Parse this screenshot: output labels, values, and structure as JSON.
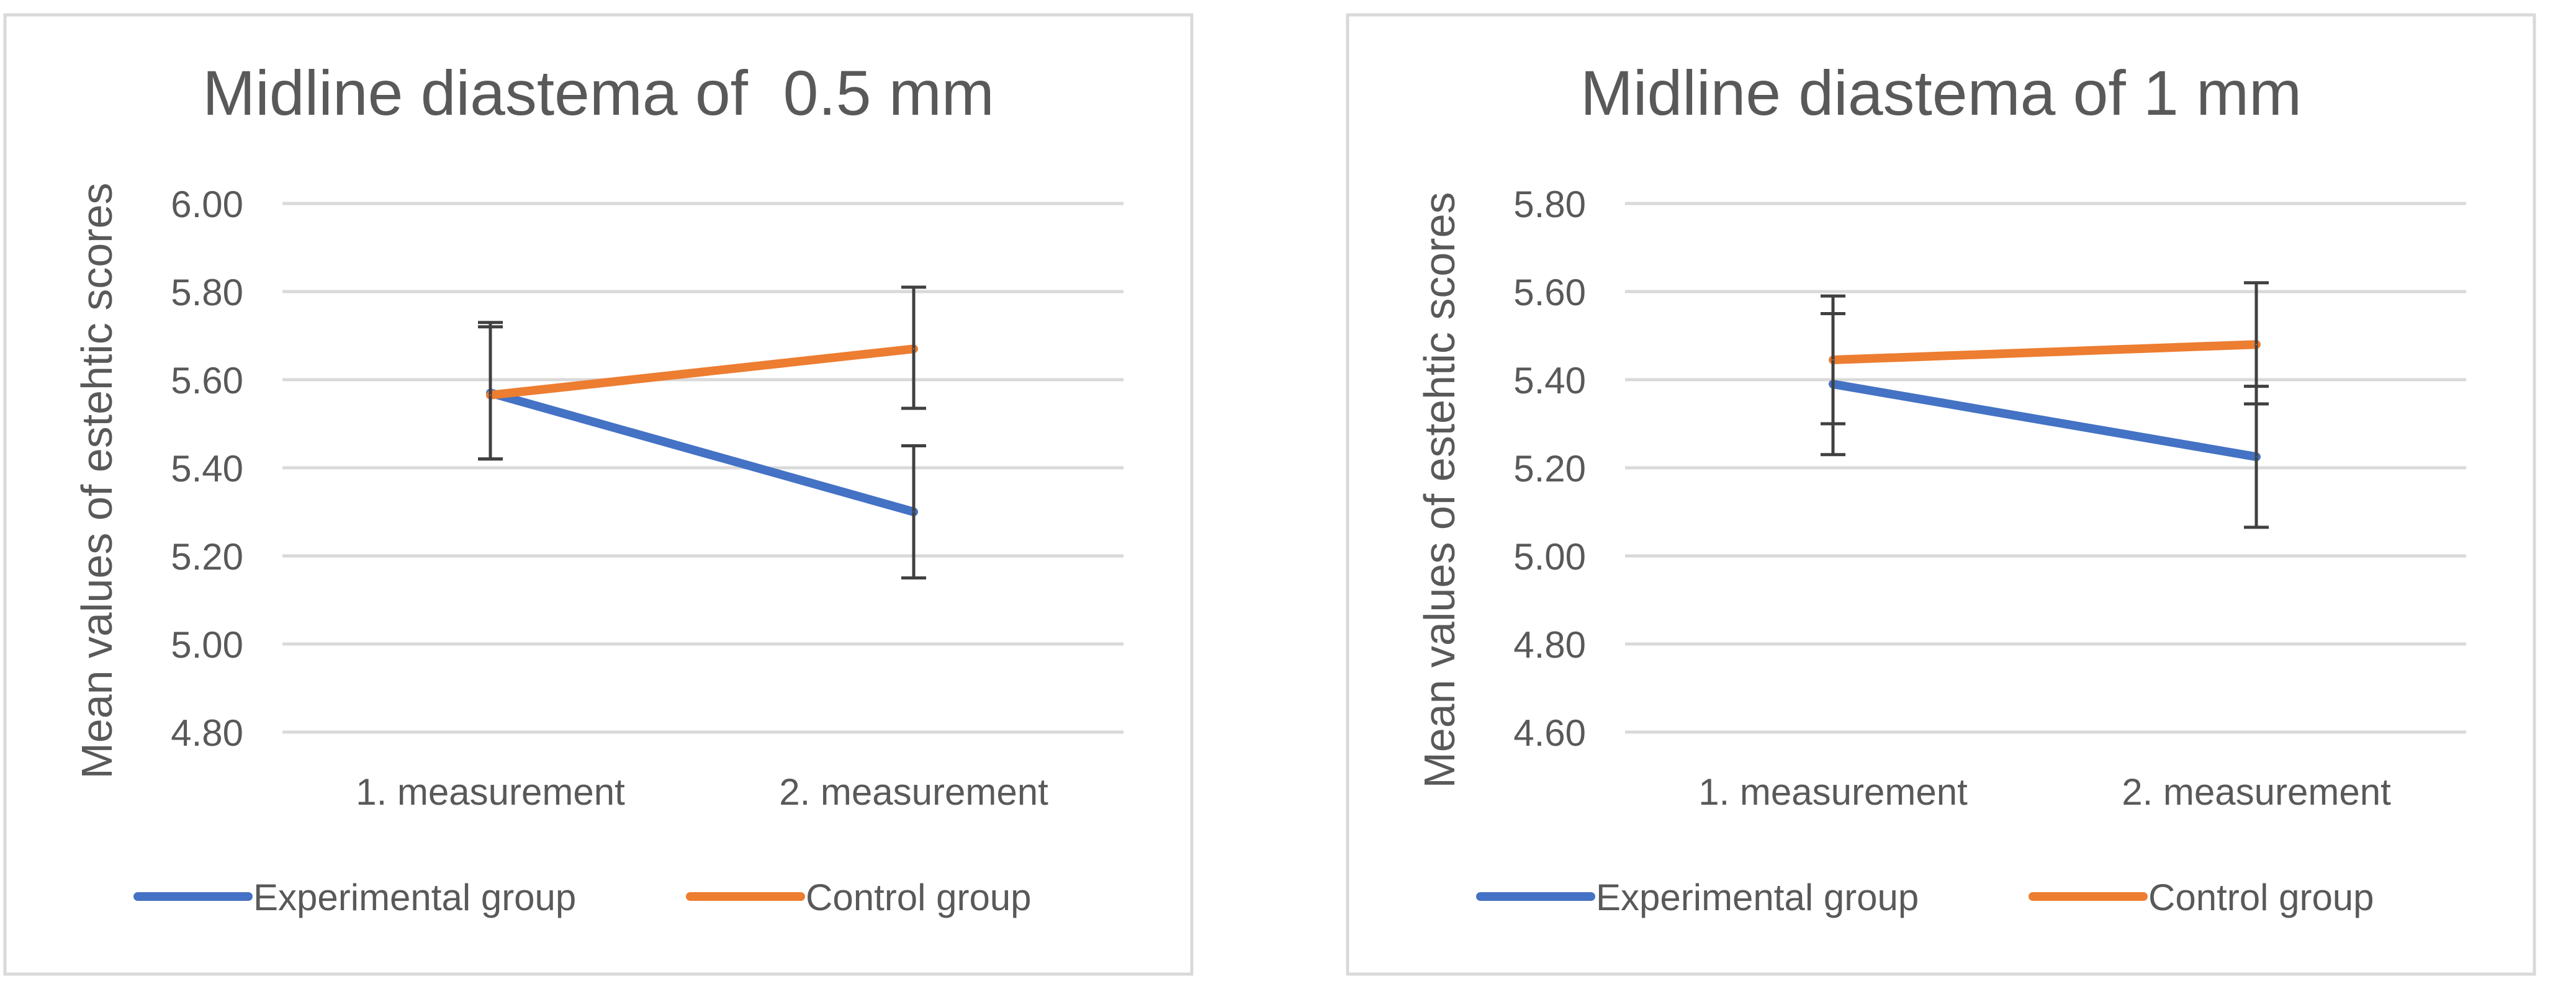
{
  "chart_data": [
    {
      "type": "line",
      "title": "Midline diastema of  0.5 mm",
      "xlabel": "",
      "ylabel": "Mean values of estehtic scores",
      "categories": [
        "1. measurement",
        "2. measurement"
      ],
      "ylim": [
        4.8,
        6.0
      ],
      "yticks": [
        "4.80",
        "5.00",
        "5.20",
        "5.40",
        "5.60",
        "5.80",
        "6.00"
      ],
      "grid": true,
      "legend": "bottom",
      "series": [
        {
          "name": "Experimental group",
          "color": "#4472C4",
          "values": [
            5.57,
            5.3
          ],
          "error_low": [
            5.42,
            5.15
          ],
          "error_high": [
            5.73,
            5.45
          ]
        },
        {
          "name": "Control group",
          "color": "#ED7D31",
          "values": [
            5.565,
            5.67
          ],
          "error_low": [
            5.42,
            5.535
          ],
          "error_high": [
            5.72,
            5.81
          ]
        }
      ]
    },
    {
      "type": "line",
      "title": "Midline diastema of 1 mm",
      "xlabel": "",
      "ylabel": "Mean values of estehtic scores",
      "categories": [
        "1. measurement",
        "2. measurement"
      ],
      "ylim": [
        4.6,
        5.8
      ],
      "yticks": [
        "4.60",
        "4.80",
        "5.00",
        "5.20",
        "5.40",
        "5.60",
        "5.80"
      ],
      "grid": true,
      "legend": "bottom",
      "series": [
        {
          "name": "Experimental group",
          "color": "#4472C4",
          "values": [
            5.39,
            5.225
          ],
          "error_low": [
            5.23,
            5.065
          ],
          "error_high": [
            5.55,
            5.385
          ]
        },
        {
          "name": "Control group",
          "color": "#ED7D31",
          "values": [
            5.445,
            5.48
          ],
          "error_low": [
            5.3,
            5.345
          ],
          "error_high": [
            5.59,
            5.62
          ]
        }
      ]
    }
  ]
}
